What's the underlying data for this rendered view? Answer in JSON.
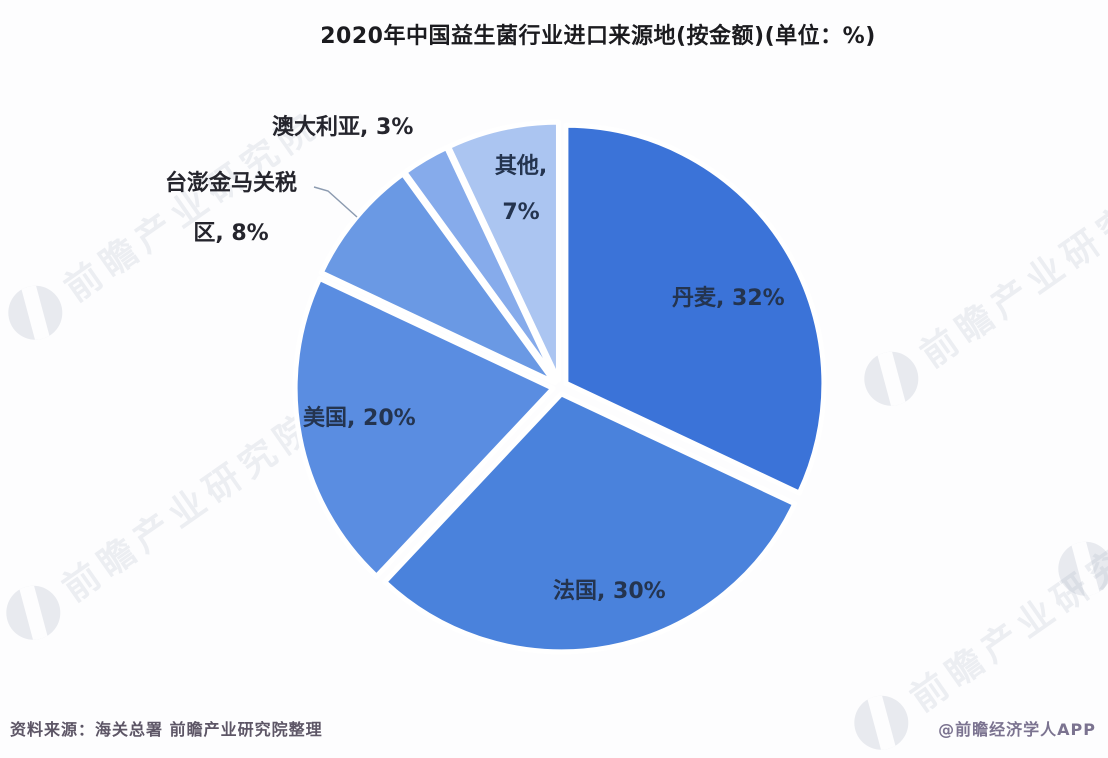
{
  "title": "2020年中国益生菌行业进口来源地(按金额)(单位：%)",
  "chart_data": {
    "type": "pie",
    "title": "2020年中国益生菌行业进口来源地(按金额)(单位：%)",
    "unit": "%",
    "start_angle_deg": 0,
    "direction": "clockwise",
    "legend": "none",
    "label_style": "category-name, percent",
    "slices": [
      {
        "name": "丹麦",
        "value": 32,
        "color": "#3b73d8"
      },
      {
        "name": "法国",
        "value": 30,
        "color": "#4a82dc"
      },
      {
        "name": "美国",
        "value": 20,
        "color": "#5a8de1"
      },
      {
        "name": "台澎金马关税区",
        "value": 8,
        "color": "#6a99e4"
      },
      {
        "name": "澳大利亚",
        "value": 3,
        "color": "#86abeb"
      },
      {
        "name": "其他",
        "value": 7,
        "color": "#abc5f1"
      }
    ]
  },
  "slice_labels": {
    "denmark": "丹麦, 32%",
    "france": "法国, 30%",
    "usa": "美国, 20%",
    "taiwan_line1": "台澎金马关税",
    "taiwan_line2": "区, 8%",
    "australia": "澳大利亚, 3%",
    "others_line1": "其他,",
    "others_line2": "7%"
  },
  "footer": {
    "source": "资料来源：海关总署 前瞻产业研究院整理",
    "credit": "@前瞻经济学人APP"
  },
  "watermark": {
    "text": "前瞻产业研究院"
  }
}
